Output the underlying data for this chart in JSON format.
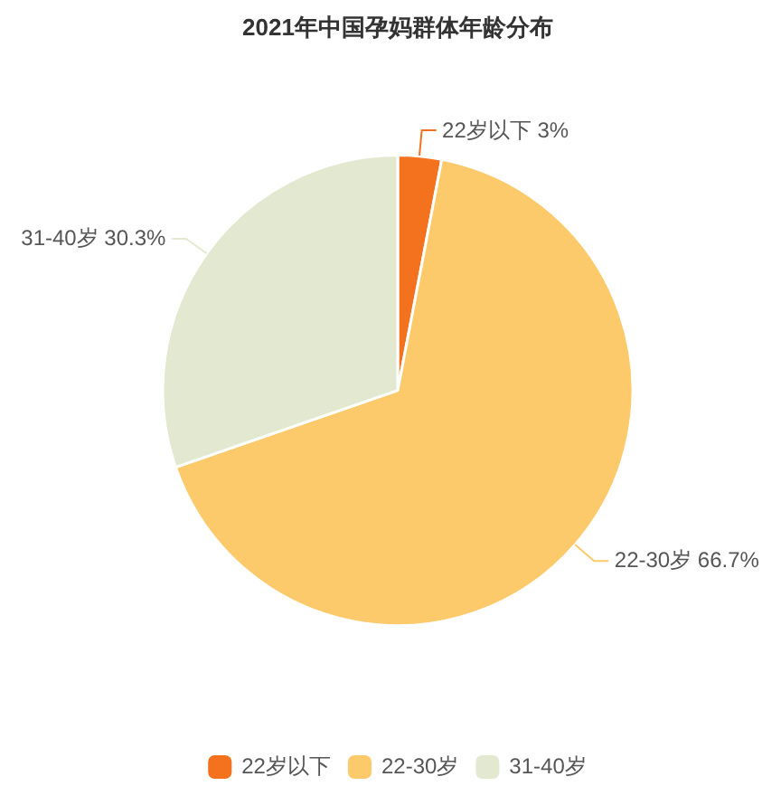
{
  "chart_data": {
    "type": "pie",
    "title": "2021年中国孕妈群体年龄分布",
    "categories": [
      "22岁以下",
      "22-30岁",
      "31-40岁"
    ],
    "values": [
      3,
      66.7,
      30.3
    ],
    "colors": [
      "#f4711e",
      "#fcca6b",
      "#e3e9d0"
    ],
    "value_labels": [
      "3%",
      "66.7%",
      "30.3%"
    ],
    "legend": "bottom"
  }
}
